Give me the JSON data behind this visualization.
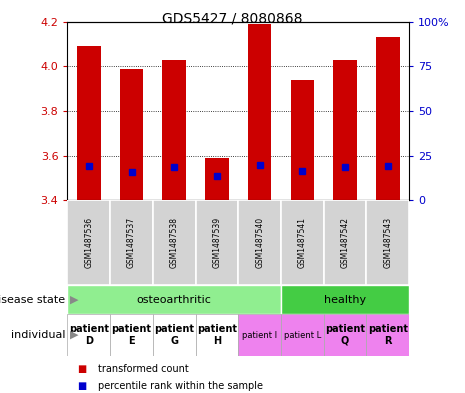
{
  "title": "GDS5427 / 8080868",
  "samples": [
    "GSM1487536",
    "GSM1487537",
    "GSM1487538",
    "GSM1487539",
    "GSM1487540",
    "GSM1487541",
    "GSM1487542",
    "GSM1487543"
  ],
  "red_values": [
    4.09,
    3.99,
    4.03,
    3.59,
    4.19,
    3.94,
    4.03,
    4.13
  ],
  "blue_values": [
    3.555,
    3.525,
    3.55,
    3.51,
    3.557,
    3.53,
    3.548,
    3.552
  ],
  "ylim": [
    3.4,
    4.2
  ],
  "yticks_left": [
    3.4,
    3.6,
    3.8,
    4.0,
    4.2
  ],
  "yticks_right": [
    0,
    25,
    50,
    75,
    100
  ],
  "disease_state_groups": [
    {
      "label": "osteoarthritic",
      "start": 0,
      "end": 5,
      "color": "#90ee90"
    },
    {
      "label": "healthy",
      "start": 5,
      "end": 8,
      "color": "#44cc44"
    }
  ],
  "individual_labels": [
    "patient\nD",
    "patient\nE",
    "patient\nG",
    "patient\nH",
    "patient I",
    "patient L",
    "patient\nQ",
    "patient\nR"
  ],
  "individual_bold": [
    true,
    true,
    true,
    true,
    false,
    false,
    true,
    true
  ],
  "individual_colors": [
    "white",
    "white",
    "white",
    "white",
    "#ee82ee",
    "#ee82ee",
    "#ee82ee",
    "#ee82ee"
  ],
  "bar_color": "#cc0000",
  "blue_color": "#0000cc",
  "sample_bg_color": "#d3d3d3",
  "left_label_color": "#cc0000",
  "right_label_color": "#0000cc",
  "legend_items": [
    {
      "color": "#cc0000",
      "label": "transformed count"
    },
    {
      "color": "#0000cc",
      "label": "percentile rank within the sample"
    }
  ]
}
